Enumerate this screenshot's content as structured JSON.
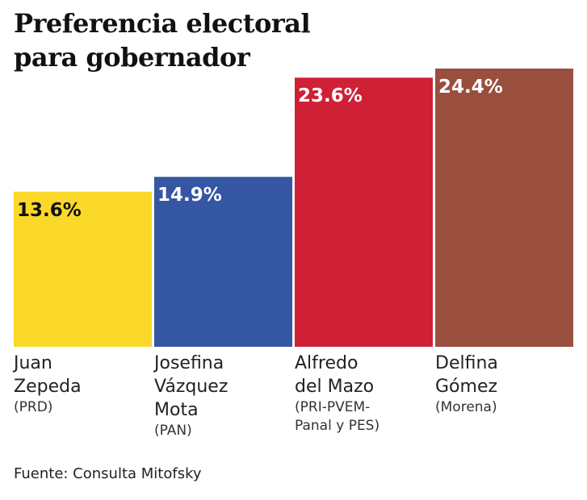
{
  "chart_data": {
    "type": "bar",
    "title": "Preferencia electoral para gobernador",
    "categories": [
      "Juan Zepeda",
      "Josefina Vázquez Mota",
      "Alfredo del Mazo",
      "Delfina Gómez"
    ],
    "parties": [
      "(PRD)",
      "(PAN)",
      "(PRI-PVEM-Panal y PES)",
      "(Morena)"
    ],
    "values": [
      13.6,
      14.9,
      23.6,
      24.4
    ],
    "value_labels": [
      "13.6%",
      "14.9%",
      "23.6%",
      "24.4%"
    ],
    "colors": [
      "#f9d829",
      "#3556a3",
      "#cf2035",
      "#9a4f3e"
    ],
    "label_colors": [
      "#111111",
      "#ffffff",
      "#ffffff",
      "#ffffff"
    ],
    "source": "Fuente: Consulta Mitofsky"
  }
}
